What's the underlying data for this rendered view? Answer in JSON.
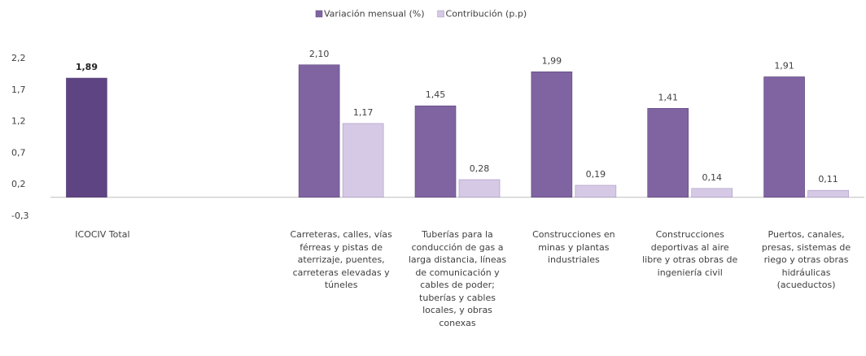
{
  "chart_data": {
    "type": "bar",
    "categories": [
      "ICOCIV Total",
      null,
      "Carreteras, calles, vías\nférreas y pistas de\naterrizaje, puentes,\ncarreteras elevadas y\ntúneles",
      "Tuberías para la\nconducción de gas a\nlarga distancia, líneas\nde comunicación y\ncables de poder;\ntuberías y cables\nlocales, y obras\nconexas",
      "Construcciones  en\nminas y plantas\nindustriales",
      "Construcciones\ndeportivas al aire\nlibre y otras obras de\ningeniería civil",
      "Puertos, canales,\npresas, sistemas de\nriego y otras obras\nhidráulicas\n(acueductos)"
    ],
    "series": [
      {
        "name": "Variación mensual (%)",
        "color": "#8064a2",
        "colors": [
          "#5e4482",
          null,
          "#8064a2",
          "#8064a2",
          "#8064a2",
          "#8064a2",
          "#8064a2"
        ],
        "values": [
          1.89,
          null,
          2.1,
          1.45,
          1.99,
          1.41,
          1.91
        ],
        "value_labels": [
          "1,89",
          null,
          "2,10",
          "1,45",
          "1,99",
          "1,41",
          "1,91"
        ]
      },
      {
        "name": "Contribución (p.p)",
        "color": "#d5c9e6",
        "values": [
          null,
          null,
          1.17,
          0.28,
          0.19,
          0.14,
          0.11
        ],
        "value_labels": [
          null,
          null,
          "1,17",
          "0,28",
          "0,19",
          "0,14",
          "0,11"
        ]
      }
    ],
    "ylim": [
      -0.3,
      2.2
    ],
    "yticks": [
      {
        "value": -0.3,
        "label": "-0,3"
      },
      {
        "value": 0.2,
        "label": "0,2"
      },
      {
        "value": 0.7,
        "label": "0,7"
      },
      {
        "value": 1.2,
        "label": "1,2"
      },
      {
        "value": 1.7,
        "label": "1,7"
      },
      {
        "value": 2.2,
        "label": "2,2"
      }
    ],
    "legend": "top"
  }
}
